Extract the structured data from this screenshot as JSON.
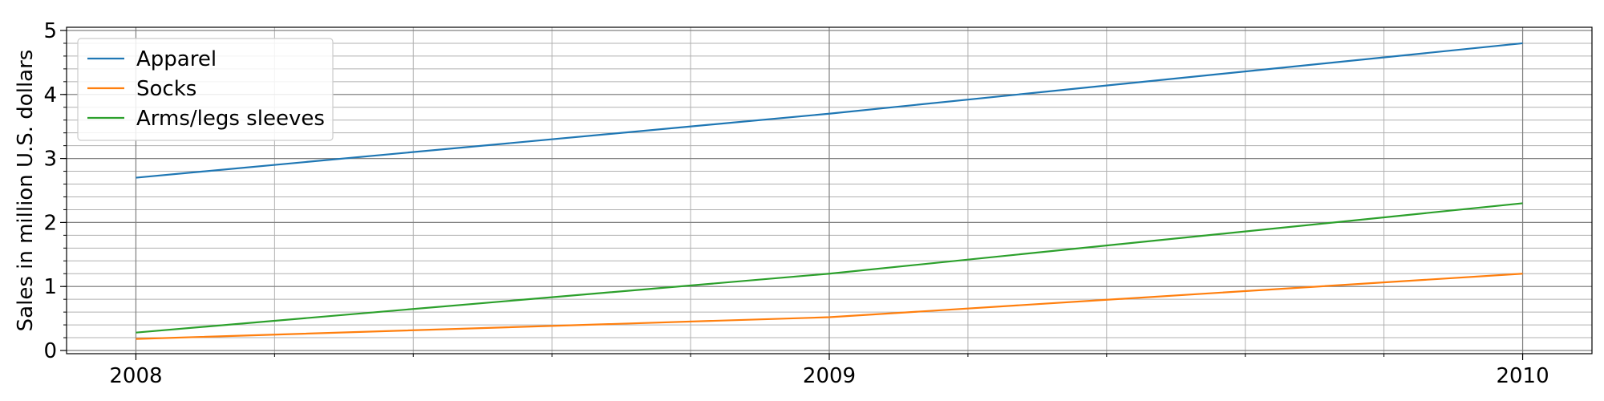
{
  "chart_data": {
    "type": "line",
    "x": [
      2008,
      2009,
      2010
    ],
    "xticks": [
      "2008",
      "2009",
      "2010"
    ],
    "xlim": [
      2007.9,
      2010.1
    ],
    "ylim": [
      -0.05,
      5.05
    ],
    "yticks": [
      "0",
      "1",
      "2",
      "3",
      "4",
      "5"
    ],
    "ylabel": "Sales in million U.S. dollars",
    "xlabel": "",
    "title": "",
    "grid": true,
    "minor_grid": true,
    "legend_position": "top-left",
    "series": [
      {
        "name": "Apparel",
        "color": "#1f77b4",
        "values": [
          2.7,
          3.7,
          4.8
        ]
      },
      {
        "name": "Socks",
        "color": "#ff7f0e",
        "values": [
          0.18,
          0.52,
          1.2
        ]
      },
      {
        "name": "Arms/legs sleeves",
        "color": "#2ca02c",
        "values": [
          0.28,
          1.2,
          2.3
        ]
      }
    ]
  }
}
